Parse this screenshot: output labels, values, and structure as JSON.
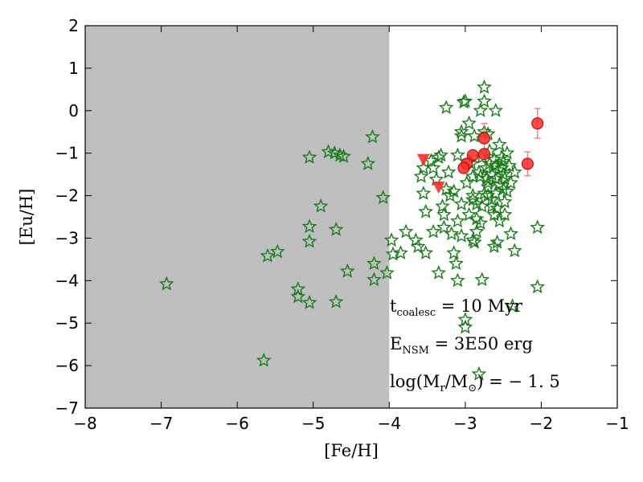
{
  "chart_data": {
    "type": "scatter",
    "xlabel": "[Fe/H]",
    "ylabel": "[Eu/H]",
    "xlim": [
      -8,
      -1
    ],
    "ylim": [
      -7,
      2
    ],
    "xticks": [
      "−8",
      "−7",
      "−6",
      "−5",
      "−4",
      "−3",
      "−2",
      "−1"
    ],
    "yticks": [
      "−7",
      "−6",
      "−5",
      "−4",
      "−3",
      "−2",
      "−1",
      "0",
      "1",
      "2"
    ],
    "shaded_region": {
      "x": [
        -8,
        -4
      ],
      "color": "#bfbfbf"
    },
    "annotations": [
      {
        "main": "t",
        "sub": "coalesc",
        "rest": " = 10 Myr"
      },
      {
        "main": "E",
        "sub": "NSM",
        "rest": " = 3E50 erg"
      },
      {
        "main": "log(M",
        "sub": "r",
        "rest": "/M",
        "sub2": "⊙",
        "rest2": ") = − 1. 5"
      }
    ],
    "series": [
      {
        "marker": "star",
        "color": "#1a7a1a",
        "points": [
          [
            -6.93,
            -4.08
          ],
          [
            -5.65,
            -5.88
          ],
          [
            -5.6,
            -3.42
          ],
          [
            -5.47,
            -3.32
          ],
          [
            -5.2,
            -4.2
          ],
          [
            -5.2,
            -4.38
          ],
          [
            -5.05,
            -4.52
          ],
          [
            -5.05,
            -3.08
          ],
          [
            -5.05,
            -2.73
          ],
          [
            -5.05,
            -1.1
          ],
          [
            -4.9,
            -2.25
          ],
          [
            -4.8,
            -0.97
          ],
          [
            -4.72,
            -1.0
          ],
          [
            -4.7,
            -4.5
          ],
          [
            -4.7,
            -2.8
          ],
          [
            -4.65,
            -1.05
          ],
          [
            -4.6,
            -1.08
          ],
          [
            -4.55,
            -3.78
          ],
          [
            -4.28,
            -1.25
          ],
          [
            -4.22,
            -0.62
          ],
          [
            -4.2,
            -3.6
          ],
          [
            -4.2,
            -3.98
          ],
          [
            -4.08,
            -2.05
          ],
          [
            -4.03,
            -3.82
          ],
          [
            -3.97,
            -3.05
          ],
          [
            -3.95,
            -3.38
          ],
          [
            -3.85,
            -3.35
          ],
          [
            -3.78,
            -2.85
          ],
          [
            -3.65,
            -3.05
          ],
          [
            -3.62,
            -3.2
          ],
          [
            -3.58,
            -1.55
          ],
          [
            -3.55,
            -1.35
          ],
          [
            -3.55,
            -1.95
          ],
          [
            -3.52,
            -2.38
          ],
          [
            -3.52,
            -3.35
          ],
          [
            -3.45,
            -1.18
          ],
          [
            -3.42,
            -2.85
          ],
          [
            -3.38,
            -1.62
          ],
          [
            -3.35,
            -1.1
          ],
          [
            -3.35,
            -3.82
          ],
          [
            -3.32,
            -1.05
          ],
          [
            -3.3,
            -2.25
          ],
          [
            -3.28,
            -2.45
          ],
          [
            -3.28,
            -2.75
          ],
          [
            -3.25,
            0.07
          ],
          [
            -3.22,
            -1.45
          ],
          [
            -3.2,
            -2.0
          ],
          [
            -3.18,
            -2.9
          ],
          [
            -3.15,
            -1.9
          ],
          [
            -3.15,
            -3.35
          ],
          [
            -3.12,
            -3.6
          ],
          [
            -3.1,
            -4.0
          ],
          [
            -3.1,
            -2.6
          ],
          [
            -3.05,
            -0.5
          ],
          [
            -3.05,
            -2.2
          ],
          [
            -3.05,
            -2.95
          ],
          [
            -3.02,
            0.2
          ],
          [
            -3.0,
            0.22
          ],
          [
            -3.0,
            -4.92
          ],
          [
            -3.0,
            -5.1
          ],
          [
            -2.98,
            -1.7
          ],
          [
            -2.95,
            -1.2
          ],
          [
            -2.95,
            -2.45
          ],
          [
            -2.92,
            -1.25
          ],
          [
            -2.9,
            -3.05
          ],
          [
            -2.9,
            -2.1
          ],
          [
            -2.88,
            -3.1
          ],
          [
            -2.88,
            -0.6
          ],
          [
            -2.85,
            -2.2
          ],
          [
            -2.85,
            -2.55
          ],
          [
            -2.85,
            -2.85
          ],
          [
            -2.82,
            -6.2
          ],
          [
            -2.82,
            -1.45
          ],
          [
            -2.8,
            0.0
          ],
          [
            -2.8,
            -1.55
          ],
          [
            -2.8,
            -2.65
          ],
          [
            -2.78,
            -3.98
          ],
          [
            -2.78,
            -1.1
          ],
          [
            -2.75,
            0.55
          ],
          [
            -2.75,
            0.22
          ],
          [
            -2.75,
            -0.5
          ],
          [
            -2.72,
            -1.35
          ],
          [
            -2.72,
            -1.6
          ],
          [
            -2.7,
            -1.7
          ],
          [
            -2.7,
            -1.8
          ],
          [
            -2.7,
            -2.0
          ],
          [
            -2.68,
            -1.25
          ],
          [
            -2.68,
            -0.95
          ],
          [
            -2.65,
            -1.5
          ],
          [
            -2.65,
            -2.1
          ],
          [
            -2.62,
            -1.15
          ],
          [
            -2.62,
            -3.2
          ],
          [
            -2.6,
            0.0
          ],
          [
            -2.6,
            -1.6
          ],
          [
            -2.6,
            -1.95
          ],
          [
            -2.58,
            -2.3
          ],
          [
            -2.58,
            -3.1
          ],
          [
            -2.56,
            -1.4
          ],
          [
            -2.55,
            -1.75
          ],
          [
            -2.55,
            -2.6
          ],
          [
            -2.52,
            -1.1
          ],
          [
            -2.52,
            -1.35
          ],
          [
            -2.5,
            -1.2
          ],
          [
            -2.5,
            -1.5
          ],
          [
            -2.5,
            -1.85
          ],
          [
            -2.48,
            -1.6
          ],
          [
            -2.48,
            -2.15
          ],
          [
            -2.48,
            -2.45
          ],
          [
            -2.45,
            -1.0
          ],
          [
            -2.45,
            -1.9
          ],
          [
            -2.42,
            -1.3
          ],
          [
            -2.4,
            -1.7
          ],
          [
            -2.4,
            -2.9
          ],
          [
            -2.38,
            -4.6
          ],
          [
            -2.35,
            -1.45
          ],
          [
            -2.35,
            -3.3
          ],
          [
            -2.05,
            -4.15
          ],
          [
            -2.05,
            -2.75
          ],
          [
            -2.65,
            -2.25
          ],
          [
            -2.6,
            -1.3
          ],
          [
            -2.75,
            -1.95
          ],
          [
            -2.9,
            -1.55
          ],
          [
            -3.1,
            -1.05
          ],
          [
            -3.42,
            -1.35
          ],
          [
            -3.25,
            -1.85
          ],
          [
            -2.95,
            -0.3
          ],
          [
            -2.7,
            -0.55
          ],
          [
            -2.55,
            -0.8
          ],
          [
            -3.05,
            -0.6
          ],
          [
            -2.9,
            -2.0
          ],
          [
            -2.78,
            -2.25
          ],
          [
            -2.62,
            -2.45
          ]
        ]
      },
      {
        "marker": "circle",
        "color": "#ff2a2a",
        "points": [
          {
            "x": -2.05,
            "y": -0.3,
            "err": 0.35
          },
          {
            "x": -2.18,
            "y": -1.25,
            "err": 0.28
          },
          {
            "x": -2.75,
            "y": -0.65,
            "err": 0.35
          },
          {
            "x": -2.75,
            "y": -1.02,
            "err": 0.0
          },
          {
            "x": -2.9,
            "y": -1.05,
            "err": 0.0
          },
          {
            "x": -2.98,
            "y": -1.25,
            "err": 0.0
          },
          {
            "x": -3.02,
            "y": -1.35,
            "err": 0.0
          }
        ]
      },
      {
        "marker": "triangle-down",
        "color": "#ff2a2a",
        "points": [
          [
            -3.55,
            -1.15
          ],
          [
            -3.35,
            -1.8
          ]
        ]
      }
    ]
  }
}
